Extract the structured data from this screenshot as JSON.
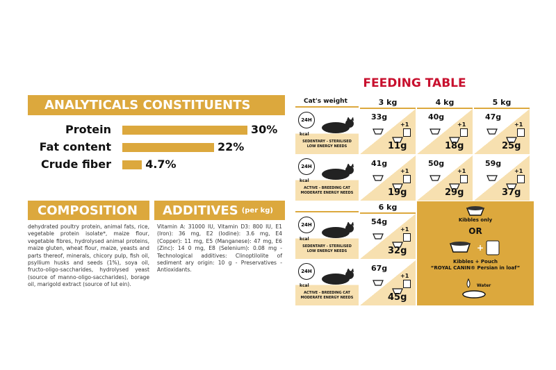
{
  "analytical": {
    "title": "ANALYTICALS CONSTITUENTS",
    "items": [
      {
        "label": "Protein",
        "value": 30,
        "value_label": "30%"
      },
      {
        "label": "Fat content",
        "value": 22,
        "value_label": "22%"
      },
      {
        "label": "Crude fiber",
        "value": 4.7,
        "value_label": "4.7%"
      }
    ]
  },
  "composition": {
    "title": "COMPOSITION",
    "text": "dehydrated poultry protein, animal fats, rice, vegetable protein isolate*, maize flour, vegetable fibres, hydrolysed animal proteins, maize gluten, wheat flour, maize, yeasts and parts thereof, minerals, chicory pulp, fish oil, psyllium husks and seeds (1%), soya oil, fructo-oligo-saccharides, hydrolysed yeast (source of manno-oligo-saccharides), borage oil, marigold extract (source of lut ein)."
  },
  "additives": {
    "title": "ADDITIVES",
    "subtitle": "(per kg)",
    "text": "Vitamin A: 31000 IU, Vitamin D3: 800 IU, E1 (Iron): 36 mg, E2 (Iodine): 3.6 mg, E4 (Copper): 11 mg, E5 (Manganese): 47 mg, E6 (Zinc): 14 0 mg, E8 (Selenium): 0.08 mg -Technological additives: Clinoptilolite of sediment ary origin: 10 g - Preservatives - Antioxidants."
  },
  "feeding": {
    "title": "FEEDING TABLE",
    "weight_label": "Cat's weight",
    "tables": [
      {
        "weights": [
          "3 kg",
          "4 kg",
          "5 kg"
        ],
        "rows": [
          {
            "duration": "24H",
            "unit": "kcal",
            "profile": [
              "SEDENTARY - STERILISED",
              "LOW ENERGY NEEDS"
            ],
            "cells": [
              {
                "dry": "33g",
                "pouch": "+1",
                "mixed": "11g"
              },
              {
                "dry": "40g",
                "pouch": "+1",
                "mixed": "18g"
              },
              {
                "dry": "47g",
                "pouch": "+1",
                "mixed": "25g"
              }
            ]
          },
          {
            "duration": "24H",
            "unit": "kcal",
            "profile": [
              "ACTIVE - BREEDING CAT",
              "MODERATE ENERGY NEEDS"
            ],
            "cells": [
              {
                "dry": "41g",
                "pouch": "+1",
                "mixed": "19g"
              },
              {
                "dry": "50g",
                "pouch": "+1",
                "mixed": "29g"
              },
              {
                "dry": "59g",
                "pouch": "+1",
                "mixed": "37g"
              }
            ]
          }
        ]
      },
      {
        "weights": [
          "6 kg"
        ],
        "rows": [
          {
            "duration": "24H",
            "unit": "kcal",
            "profile": [
              "SEDENTARY - STERILISED",
              "LOW ENERGY NEEDS"
            ],
            "cells": [
              {
                "dry": "54g",
                "pouch": "+1",
                "mixed": "32g"
              }
            ]
          },
          {
            "duration": "24H",
            "unit": "kcal",
            "profile": [
              "ACTIVE - BREEDING CAT",
              "MODERATE ENERGY NEEDS"
            ],
            "cells": [
              {
                "dry": "67g",
                "pouch": "+1",
                "mixed": "45g"
              }
            ]
          }
        ]
      }
    ],
    "legend": {
      "kibbles_only": "Kibbles only",
      "or": "OR",
      "kibbles_pouch": "Kibbles + Pouch",
      "pouch_name": "“ROYAL CANIN® Persian in loaf”",
      "water": "Water"
    }
  }
}
